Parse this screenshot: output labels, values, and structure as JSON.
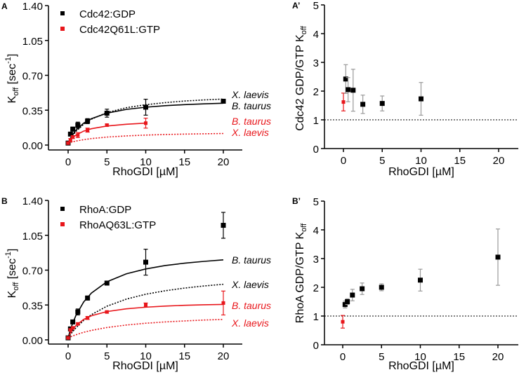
{
  "colors": {
    "black": "#000000",
    "red": "#e8161b",
    "errbar_gray": "#999999"
  },
  "chart_data": [
    {
      "panel": "A",
      "type": "scatter",
      "xlabel": "RhoGDI [µM]",
      "ylabel": "K",
      "ylabel_sub": "off",
      "ylabel_unit": " [sec",
      "ylabel_sup": "-1",
      "ylabel_close": "]",
      "xlim": [
        -2.5,
        22.4
      ],
      "ylim": [
        0,
        1.4
      ],
      "xticks": [
        "0",
        "5",
        "10",
        "15",
        "20"
      ],
      "yticks": [
        "0.00",
        "0.35",
        "0.70",
        "1.05",
        "1.40"
      ],
      "legend": "top-left",
      "series": [
        {
          "name": "Cdc42:GDP",
          "color": "black",
          "x": [
            0,
            0.3,
            0.6,
            1.25,
            2.5,
            5,
            10,
            20
          ],
          "y": [
            0.02,
            0.11,
            0.16,
            0.2,
            0.24,
            0.32,
            0.38,
            0.44
          ],
          "err": [
            0.01,
            0.015,
            0.02,
            0.03,
            0.025,
            0.04,
            0.08,
            0.01
          ]
        },
        {
          "name": "Cdc42Q61L:GTP",
          "color": "red",
          "x": [
            0,
            0.3,
            0.6,
            1.25,
            2.5,
            5,
            10
          ],
          "y": [
            0.02,
            0.05,
            0.08,
            0.1,
            0.15,
            0.2,
            0.22
          ],
          "err": [
            0.01,
            0.015,
            0.015,
            0.025,
            0.02,
            0.01,
            0.05
          ]
        }
      ],
      "fits": [
        {
          "label": "X. laevis",
          "color": "black",
          "style": "dotted",
          "x": [
            0,
            0.25,
            0.5,
            1,
            2,
            3,
            5,
            7.5,
            10,
            12.5,
            15,
            17.5,
            20
          ],
          "y": [
            0.02,
            0.055,
            0.085,
            0.136,
            0.209,
            0.26,
            0.326,
            0.375,
            0.405,
            0.426,
            0.442,
            0.453,
            0.462
          ]
        },
        {
          "label": "B. taurus",
          "color": "black",
          "style": "solid",
          "x": [
            0,
            0.25,
            0.5,
            1,
            2,
            3,
            5,
            7.5,
            10,
            12.5,
            15,
            17.5,
            20
          ],
          "y": [
            0.02,
            0.061,
            0.095,
            0.149,
            0.22,
            0.265,
            0.32,
            0.358,
            0.38,
            0.395,
            0.406,
            0.414,
            0.42
          ]
        },
        {
          "label": "B. taurus",
          "color": "red",
          "style": "solid",
          "x": [
            0,
            0.25,
            0.5,
            1,
            2,
            3,
            5,
            7.5,
            10
          ],
          "y": [
            0.02,
            0.047,
            0.068,
            0.1,
            0.14,
            0.164,
            0.191,
            0.209,
            0.22
          ]
        },
        {
          "label": "X. laevis",
          "color": "red",
          "style": "dotted",
          "x": [
            0,
            0.25,
            0.5,
            1,
            2,
            3,
            5,
            7.5,
            10,
            12.5,
            15,
            17.5,
            20
          ],
          "y": [
            0.02,
            0.026,
            0.031,
            0.04,
            0.054,
            0.065,
            0.08,
            0.092,
            0.1,
            0.106,
            0.11,
            0.113,
            0.116
          ]
        }
      ]
    },
    {
      "panel": "A’",
      "type": "scatter",
      "xlabel": "RhoGDI [µM]",
      "ylabel": "Cdc42 GDP/GTP K",
      "ylabel_sub": "off",
      "xlim": [
        -2.5,
        22.4
      ],
      "ylim": [
        0,
        5
      ],
      "xticks": [
        "0",
        "5",
        "10",
        "15",
        "20"
      ],
      "yticks": [
        "0",
        "1",
        "2",
        "3",
        "4",
        "5"
      ],
      "reference_line": 1,
      "series": [
        {
          "color": "red",
          "x": [
            0
          ],
          "y": [
            1.62
          ],
          "err": [
            0.31
          ]
        },
        {
          "color": "black",
          "x": [
            0.3,
            0.6,
            1.25,
            2.5,
            5,
            10
          ],
          "y": [
            2.42,
            2.05,
            2.03,
            1.54,
            1.57,
            1.73
          ],
          "err": [
            0.5,
            0.42,
            0.73,
            0.32,
            0.26,
            0.57
          ]
        }
      ]
    },
    {
      "panel": "B",
      "type": "scatter",
      "xlabel": "RhoGDI [µM]",
      "ylabel": "K",
      "ylabel_sub": "off",
      "ylabel_unit": " [sec",
      "ylabel_sup": "-1",
      "ylabel_close": "]",
      "xlim": [
        -2.5,
        22.4
      ],
      "ylim": [
        0,
        1.4
      ],
      "xticks": [
        "0",
        "5",
        "10",
        "15",
        "20"
      ],
      "yticks": [
        "0.00",
        "0.35",
        "0.70",
        "1.05",
        "1.40"
      ],
      "legend": "top-left",
      "series": [
        {
          "name": "RhoA:GDP",
          "color": "black",
          "x": [
            0,
            0.3,
            0.6,
            1.25,
            2.5,
            5,
            10,
            20
          ],
          "y": [
            0.02,
            0.11,
            0.18,
            0.28,
            0.42,
            0.57,
            0.78,
            1.15
          ],
          "err": [
            0.01,
            0.01,
            0.01,
            0.03,
            0.02,
            0.02,
            0.13,
            0.13
          ]
        },
        {
          "name": "RhoAQ63L:GTP",
          "color": "red",
          "x": [
            0,
            0.3,
            0.6,
            1.25,
            2.5,
            5,
            10,
            20
          ],
          "y": [
            0.02,
            0.1,
            0.12,
            0.16,
            0.22,
            0.28,
            0.35,
            0.37
          ],
          "err": [
            0.01,
            0.01,
            0.01,
            0.01,
            0.015,
            0.01,
            0.02,
            0.12
          ]
        }
      ],
      "fits": [
        {
          "label": "B. taurus",
          "color": "black",
          "style": "solid",
          "x": [
            0,
            0.25,
            0.5,
            1,
            2,
            3,
            5,
            7.5,
            10,
            12.5,
            15,
            17.5,
            20
          ],
          "y": [
            0.02,
            0.089,
            0.149,
            0.245,
            0.38,
            0.47,
            0.583,
            0.663,
            0.712,
            0.746,
            0.77,
            0.788,
            0.803
          ]
        },
        {
          "label": "X. laevis",
          "color": "black",
          "style": "dotted",
          "x": [
            0,
            0.25,
            0.5,
            1,
            2,
            3,
            5,
            7.5,
            10,
            12.5,
            15,
            17.5,
            20
          ],
          "y": [
            0.02,
            0.048,
            0.074,
            0.12,
            0.195,
            0.253,
            0.338,
            0.409,
            0.458,
            0.493,
            0.52,
            0.541,
            0.558
          ]
        },
        {
          "label": "B. taurus",
          "color": "red",
          "style": "solid",
          "x": [
            0,
            0.25,
            0.5,
            1,
            2,
            3,
            5,
            7.5,
            10,
            12.5,
            15,
            17.5,
            20
          ],
          "y": [
            0.02,
            0.061,
            0.094,
            0.143,
            0.205,
            0.242,
            0.284,
            0.312,
            0.328,
            0.339,
            0.347,
            0.352,
            0.356
          ]
        },
        {
          "label": "X. laevis",
          "color": "red",
          "style": "dotted",
          "x": [
            0,
            0.25,
            0.5,
            1,
            2,
            3,
            5,
            7.5,
            10,
            12.5,
            15,
            17.5,
            20
          ],
          "y": [
            0.02,
            0.029,
            0.037,
            0.051,
            0.076,
            0.095,
            0.124,
            0.149,
            0.167,
            0.18,
            0.19,
            0.199,
            0.205
          ]
        }
      ]
    },
    {
      "panel": "B’",
      "type": "scatter",
      "xlabel": "RhoGDI [µM]",
      "ylabel": "RhoA GDP/GTP K",
      "ylabel_sub": "off",
      "xlim": [
        -2.5,
        22.4
      ],
      "ylim": [
        0,
        5
      ],
      "xticks": [
        "0",
        "5",
        "10",
        "15",
        "20"
      ],
      "yticks": [
        "0",
        "1",
        "2",
        "3",
        "4",
        "5"
      ],
      "reference_line": 1,
      "series": [
        {
          "color": "red",
          "x": [
            0
          ],
          "y": [
            0.8
          ],
          "err": [
            0.22
          ]
        },
        {
          "color": "black",
          "x": [
            0.3,
            0.6,
            1.25,
            2.5,
            5,
            10,
            20
          ],
          "y": [
            1.4,
            1.5,
            1.73,
            1.95,
            2.0,
            2.25,
            3.05
          ],
          "err": [
            0.12,
            0.1,
            0.2,
            0.2,
            0.12,
            0.38,
            0.98
          ]
        }
      ]
    }
  ]
}
